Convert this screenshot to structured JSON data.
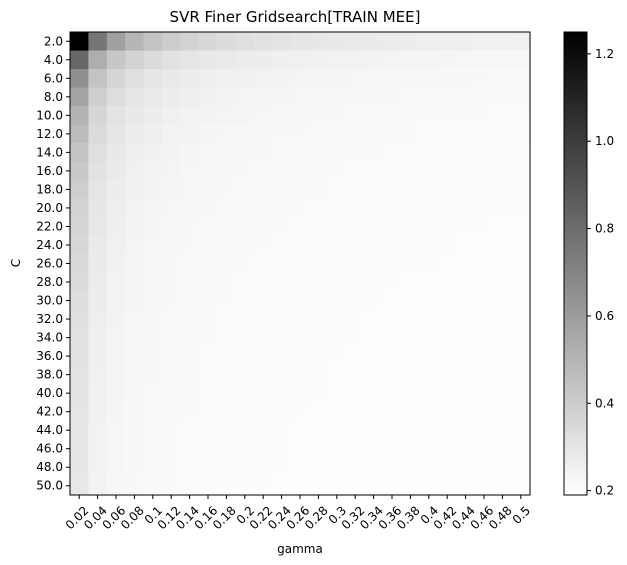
{
  "chart_data": {
    "type": "heatmap",
    "title": "SVR Finer Gridsearch[TRAIN MEE]",
    "xlabel": "gamma",
    "ylabel": "C",
    "x_categories": [
      "0.02",
      "0.04",
      "0.06",
      "0.08",
      "0.1",
      "0.12",
      "0.14",
      "0.16",
      "0.18",
      "0.2",
      "0.22",
      "0.24",
      "0.26",
      "0.28",
      "0.3",
      "0.32",
      "0.34",
      "0.36",
      "0.38",
      "0.4",
      "0.42",
      "0.44",
      "0.46",
      "0.48",
      "0.5"
    ],
    "y_categories": [
      "2.0",
      "4.0",
      "6.0",
      "8.0",
      "10.0",
      "12.0",
      "14.0",
      "16.0",
      "18.0",
      "20.0",
      "22.0",
      "24.0",
      "26.0",
      "28.0",
      "30.0",
      "32.0",
      "34.0",
      "36.0",
      "38.0",
      "40.0",
      "42.0",
      "44.0",
      "46.0",
      "48.0",
      "50.0"
    ],
    "colormap": "gray_r",
    "colorbar": {
      "range": [
        0.19,
        1.25
      ],
      "ticks": [
        0.2,
        0.4,
        0.6,
        0.8,
        1.0,
        1.2
      ],
      "tick_labels": [
        "0.2",
        "0.4",
        "0.6",
        "0.8",
        "1.0",
        "1.2"
      ]
    },
    "model": {
      "description": "approximate cell values estimated from shading",
      "min": 0.19,
      "max": 1.25,
      "corner_top_left": 1.25,
      "gamma_power": 0.9,
      "c_power": 0.75
    }
  }
}
